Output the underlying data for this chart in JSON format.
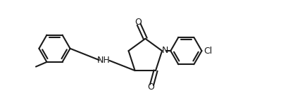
{
  "bg_color": "#ffffff",
  "line_color": "#1a1a1a",
  "line_width": 1.5,
  "figsize": [
    4.09,
    1.56
  ],
  "dpi": 100,
  "xlim": [
    0,
    10
  ],
  "ylim": [
    0,
    4.2
  ]
}
